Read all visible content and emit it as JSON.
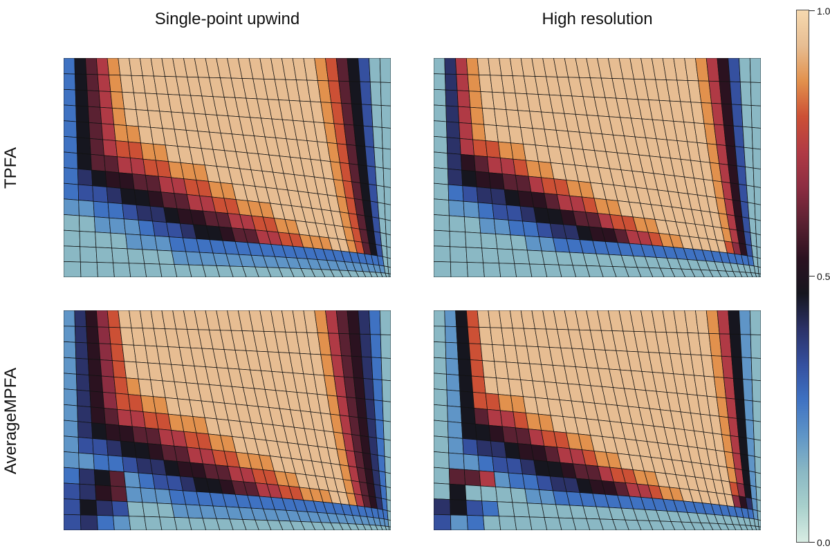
{
  "column_titles": [
    {
      "label": "Single-point upwind"
    },
    {
      "label": "High resolution"
    }
  ],
  "row_labels": [
    {
      "label": "TPFA"
    },
    {
      "label": "AverageMPFA"
    }
  ],
  "colorbar": {
    "max_label": "1.0",
    "mid_label": "0.5",
    "min_label": "0.0"
  },
  "chart_data": {
    "type": "heatmap",
    "description": "2x2 panel figure: saturation fields on a distorted quadrilateral mesh. Rows = discretization (TPFA, AverageMPFA); columns = transport scheme (Single-point upwind, High resolution). Diverging colormap from light teal (0.0) through blue, black (0.5), dark red, to light tan (1.0).",
    "grid": {
      "cols": 30,
      "rows": 14
    },
    "value_encoding": "each cell is one hex digit d; value = d/15, mapped through colormap",
    "colormap": {
      "min": 0.0,
      "max": 1.0,
      "stops_by_sixteenth": [
        "#d8ece3",
        "#a8d0cc",
        "#8ab8c4",
        "#5f95c7",
        "#3f72c2",
        "#35509f",
        "#2b3268",
        "#16161f",
        "#2b1220",
        "#5a2132",
        "#8c2d41",
        "#b03a45",
        "#cc5035",
        "#e2914d",
        "#e7bd92",
        "#f6d9af"
      ]
    },
    "mesh_distortion": {
      "bottom_exponent": 1.6,
      "right_exponent": 1.6
    },
    "panels": [
      {
        "row_label": "TPFA",
        "col_label": "Single-point upwind",
        "cells": [
          "479bdeeeeeeeeeeeeeeeeeedc97522",
          "479bdeeeeeeeeeeeeeeeeeedc97522",
          "479bdeeeeeeeeeeeeeeeeeedc97522",
          "479bdeeeeeeeeeeeeeeeeeedc97522",
          "479bddeeeeeeeeeeeeeeeeedc97522",
          "479bccddeeeeeeeeeeeeeeedc97522",
          "4799bbccdddeeeeeeeeeeeedc97522",
          "4678899bbccddeeeeeeeeeedc97522",
          "455677899bbccdddeeeeeeedc97522",
          "334456678899bbccddeeeeedc97522",
          "22333455677899bbccdddeedc97522",
          "222233344444444444444444444422",
          "222222233333333333333333333322",
          "222222222222222222222222222222"
        ]
      },
      {
        "row_label": "TPFA",
        "col_label": "High resolution",
        "cells": [
          "26bdeeeeeeeeeeeeeeeeeeeedb8522",
          "26bdeeeeeeeeeeeeeeeeeeeedb8522",
          "26bdeeeeeeeeeeeeeeeeeeeedb8522",
          "26bdeeeeeeeeeeeeeeeeeeeedb8522",
          "26bdeeeeeeeeeeeeeeeeeeeedb8522",
          "26bccddeeeeeeeeeeeeeeeeedb8522",
          "2689bbcddeeeeeeeeeeeeeeedb8522",
          "2678899bccddeeeeeeeeeeeedb8522",
          "245667889bbcddeeeeeeeeeedb8522",
          "233455677899bccddeeeeeeedb8522",
          "22233445667889bbcddeeeeeca8522",
          "222222334444444444444444444422",
          "222222222222222222222222222222",
          "222222222222222222222222222222"
        ]
      },
      {
        "row_label": "AverageMPFA",
        "col_label": "Single-point upwind",
        "cells": [
          "368aceeeeeeeeeeeeeeeeeedb98642",
          "368aceeeeeeeeeeeeeeeeeedb98642",
          "368aceeeeeeeeeeeeeeeeeedb98642",
          "368aceeeeeeeeeeeeeeeeeedb98642",
          "368acdeeeeeeeeeeeeeeeeedb98642",
          "368accddeeeeeeeeeeeeeeedb98642",
          "3689bbccdddeeeeeeeeeeeedb98642",
          "3678899bbccddeeeeeeeeeedb98642",
          "355677899bbccdddeeeeeeedb98642",
          "334456678899bbccddeeeeedb98642",
          "46793455677899bbccdddeedb98642",
          "568933344444444444444444444442",
          "576522233333333333333333333332",
          "564322222222222222222222222222"
        ]
      },
      {
        "row_label": "AverageMPFA",
        "col_label": "High resolution",
        "cells": [
          "237ceeeeeeeeeeeeeeeeeeeeedb732",
          "237ceeeeeeeeeeeeeeeeeeeeedb732",
          "237ceeeeeeeeeeeeeeeeeeeeedb732",
          "237ceeeeeeeeeeeeeeeeeeeeedb732",
          "237ceeeeeeeeeeeeeeeeeeeeedb732",
          "237ccddeeeeeeeeeeeeeeeeeedb732",
          "2379bbcddeeeeeeeeeeeeeeeedb732",
          "2377899bccddeeeeeeeeeeeeedb732",
          "235667889bbcddeeeeeeeeeeedb732",
          "233455677899bccddeeeeeeeeca732",
          "299b3445667889bbcddeeeeeea8632",
          "272222334444444444444444444432",
          "675422222222222222222222222222",
          "534222222222222222222222222222"
        ]
      }
    ]
  }
}
